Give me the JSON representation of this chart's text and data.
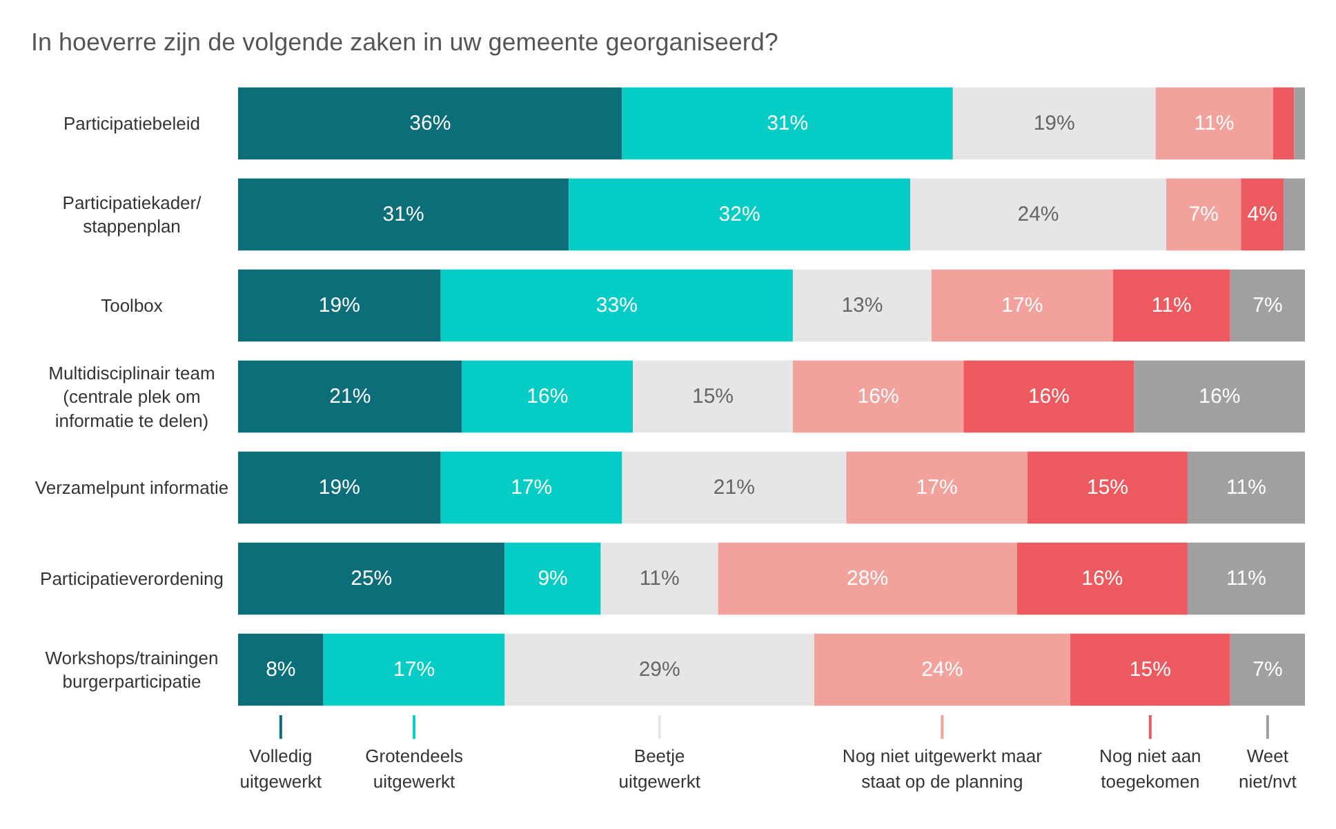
{
  "chart_data": {
    "type": "bar",
    "orientation": "horizontal",
    "stacked": true,
    "title": "In hoeverre zijn de volgende zaken in uw gemeente georganiseerd?",
    "categories": [
      "Participatiebeleid",
      "Participatiekader/\nstappenplan",
      "Toolbox",
      "Multidisciplinair team\n(centrale plek om\ninformatie te delen)",
      "Verzamelpunt informatie",
      "Participatieverordening",
      "Workshops/trainingen\nburgerparticipatie"
    ],
    "series": [
      {
        "name": "Volledig\nuitgewerkt",
        "color": "#0b6e79",
        "values": [
          36,
          31,
          19,
          21,
          19,
          25,
          8
        ],
        "value_labels": [
          "36%",
          "31%",
          "19%",
          "21%",
          "19%",
          "25%",
          "8%"
        ]
      },
      {
        "name": "Grotendeels\nuitgewerkt",
        "color": "#05cdc6",
        "values": [
          31,
          32,
          33,
          16,
          17,
          9,
          17
        ],
        "value_labels": [
          "31%",
          "32%",
          "33%",
          "16%",
          "17%",
          "9%",
          "17%"
        ]
      },
      {
        "name": "Beetje\nuitgewerkt",
        "color": "#e6e6e6",
        "values": [
          19,
          24,
          13,
          15,
          21,
          11,
          29
        ],
        "value_labels": [
          "19%",
          "24%",
          "13%",
          "15%",
          "21%",
          "11%",
          "29%"
        ]
      },
      {
        "name": "Nog niet uitgewerkt maar\nstaat op de planning",
        "color": "#f2a19d",
        "values": [
          11,
          7,
          17,
          16,
          17,
          28,
          24
        ],
        "value_labels": [
          "11%",
          "7%",
          "17%",
          "16%",
          "17%",
          "28%",
          "24%"
        ]
      },
      {
        "name": "Nog niet aan\ntoegekomen",
        "color": "#ec5a5f",
        "values": [
          2,
          4,
          11,
          16,
          15,
          16,
          15
        ],
        "value_labels": [
          null,
          "4%",
          "11%",
          "16%",
          "15%",
          "16%",
          "15%"
        ]
      },
      {
        "name": "Weet\nniet/nvt",
        "color": "#a0a0a0",
        "values": [
          1,
          2,
          7,
          16,
          11,
          11,
          7
        ],
        "value_labels": [
          null,
          null,
          "7%",
          "16%",
          "11%",
          "11%",
          "7%"
        ]
      }
    ],
    "legend": "bottom"
  }
}
